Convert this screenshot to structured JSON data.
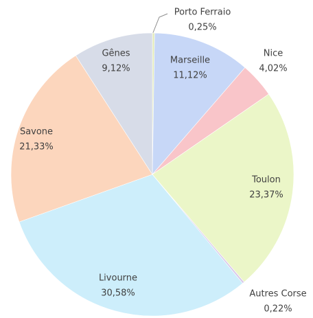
{
  "chart_data": {
    "type": "pie",
    "categories": [
      "Porto Ferraio",
      "Marseille",
      "Nice",
      "Toulon",
      "Autres Corse",
      "Livourne",
      "Savone",
      "Gênes"
    ],
    "values": [
      0.25,
      11.12,
      4.02,
      23.37,
      0.22,
      30.58,
      21.33,
      9.12
    ],
    "value_labels": [
      "0,25%",
      "11,12%",
      "4,02%",
      "23,37%",
      "0,22%",
      "30,58%",
      "21,33%",
      "9,12%"
    ],
    "colors": [
      "#e3ebb8",
      "#c7d7f7",
      "#f9c5c9",
      "#ebf6c8",
      "#d9c9ea",
      "#cdeefb",
      "#fcd6bd",
      "#d7dce8"
    ]
  }
}
